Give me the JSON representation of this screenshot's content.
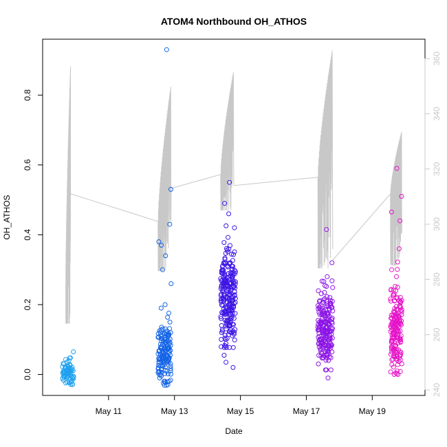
{
  "chart_data": {
    "type": "scatter",
    "title": "ATOM4 Northbound OH_ATHOS",
    "xlabel": "Date",
    "ylabel": "OH_ATHOS",
    "xlim": [
      "2018-05-09",
      "2018-05-20.6"
    ],
    "ylim": [
      -0.06,
      0.96
    ],
    "y2lim": [
      238,
      367
    ],
    "x_ticks": [
      {
        "label": "May 11",
        "value": "2018-05-11"
      },
      {
        "label": "May 13",
        "value": "2018-05-13"
      },
      {
        "label": "May 15",
        "value": "2018-05-15"
      },
      {
        "label": "May 17",
        "value": "2018-05-17"
      },
      {
        "label": "May 19",
        "value": "2018-05-19"
      }
    ],
    "y_ticks": [
      0.0,
      0.2,
      0.4,
      0.6,
      0.8
    ],
    "y_tick_labels": [
      "0.0",
      "0.2",
      "0.4",
      "0.6",
      "0.8"
    ],
    "y2_ticks": [
      240,
      260,
      280,
      300,
      320,
      340,
      360
    ],
    "y2_tick_labels": [
      "240",
      "260",
      "280",
      "300",
      "320",
      "340",
      "360"
    ],
    "grid": false,
    "legend": "none",
    "colors": {
      "day1": "#1ea0f0",
      "day2": "#1464e6",
      "day3": "#3c14e6",
      "day4": "#8c14e6",
      "day5": "#e614c8",
      "secondary_line": "#c8c8c8",
      "axis": "#000000",
      "right_axis": "#c8c8c8"
    },
    "scatter_groups": [
      {
        "color_key": "day1",
        "t_start": "2018-05-09.6",
        "t_end": "2018-05-09.95",
        "y_center": 0.005,
        "y_spread": 0.03,
        "n": 70,
        "extra": [
          0.065,
          0.04,
          0.03,
          -0.02
        ]
      },
      {
        "color_key": "day2",
        "t_start": "2018-05-12.5",
        "t_end": "2018-05-12.9",
        "y_center": 0.06,
        "y_spread": 0.07,
        "n": 150,
        "extra": [
          0.93,
          0.53,
          0.43,
          0.38,
          0.37,
          0.34,
          0.3,
          0.26,
          0.2,
          0.19,
          0.15,
          0.13,
          -0.025
        ]
      },
      {
        "color_key": "day3",
        "t_start": "2018-05-14.4",
        "t_end": "2018-05-14.85",
        "y_center": 0.22,
        "y_spread": 0.11,
        "n": 230,
        "extra": [
          0.55,
          0.49,
          0.46,
          0.42,
          0.055,
          0.035,
          0.02
        ]
      },
      {
        "color_key": "day4",
        "t_start": "2018-05-17.35",
        "t_end": "2018-05-17.8",
        "y_center": 0.13,
        "y_spread": 0.09,
        "n": 200,
        "extra": [
          0.415,
          0.32,
          0.28,
          -0.01
        ]
      },
      {
        "color_key": "day5",
        "t_start": "2018-05-19.55",
        "t_end": "2018-05-19.9",
        "y_center": 0.13,
        "y_spread": 0.1,
        "n": 170,
        "extra": [
          0.59,
          0.51,
          0.465,
          0.44,
          0.36,
          0.3,
          0.28,
          0.25,
          0.22,
          0.01
        ]
      }
    ],
    "secondary_series": {
      "name": "",
      "axis": "right",
      "segments": [
        {
          "t": [
            "2018-05-09.7",
            "2018-05-09.85"
          ],
          "y": [
            278,
            334,
            264,
            359,
            311
          ],
          "style": "oscillating"
        },
        {
          "t": [
            "2018-05-12.5",
            "2018-05-12.9"
          ],
          "y": [
            301,
            335,
            283,
            351,
            314
          ],
          "style": "oscillating"
        },
        {
          "t": [
            "2018-05-14.4",
            "2018-05-14.8"
          ],
          "y": [
            318,
            349,
            305,
            356,
            314
          ],
          "style": "oscillating"
        },
        {
          "t": [
            "2018-05-17.35",
            "2018-05-17.8"
          ],
          "y": [
            317,
            326,
            284,
            364,
            291
          ],
          "style": "oscillating"
        },
        {
          "t": [
            "2018-05-19.55",
            "2018-05-19.9"
          ],
          "y": [
            311,
            330,
            285,
            334,
            300
          ],
          "style": "oscillating"
        }
      ],
      "connectors": [
        {
          "from": [
            "2018-05-09.85",
            311
          ],
          "to": [
            "2018-05-12.5",
            301
          ]
        },
        {
          "from": [
            "2018-05-12.9",
            313
          ],
          "to": [
            "2018-05-14.4",
            318
          ]
        },
        {
          "from": [
            "2018-05-14.8",
            314
          ],
          "to": [
            "2018-05-17.35",
            317
          ]
        },
        {
          "from": [
            "2018-05-17.8",
            287
          ],
          "to": [
            "2018-05-19.55",
            311
          ]
        }
      ]
    }
  }
}
